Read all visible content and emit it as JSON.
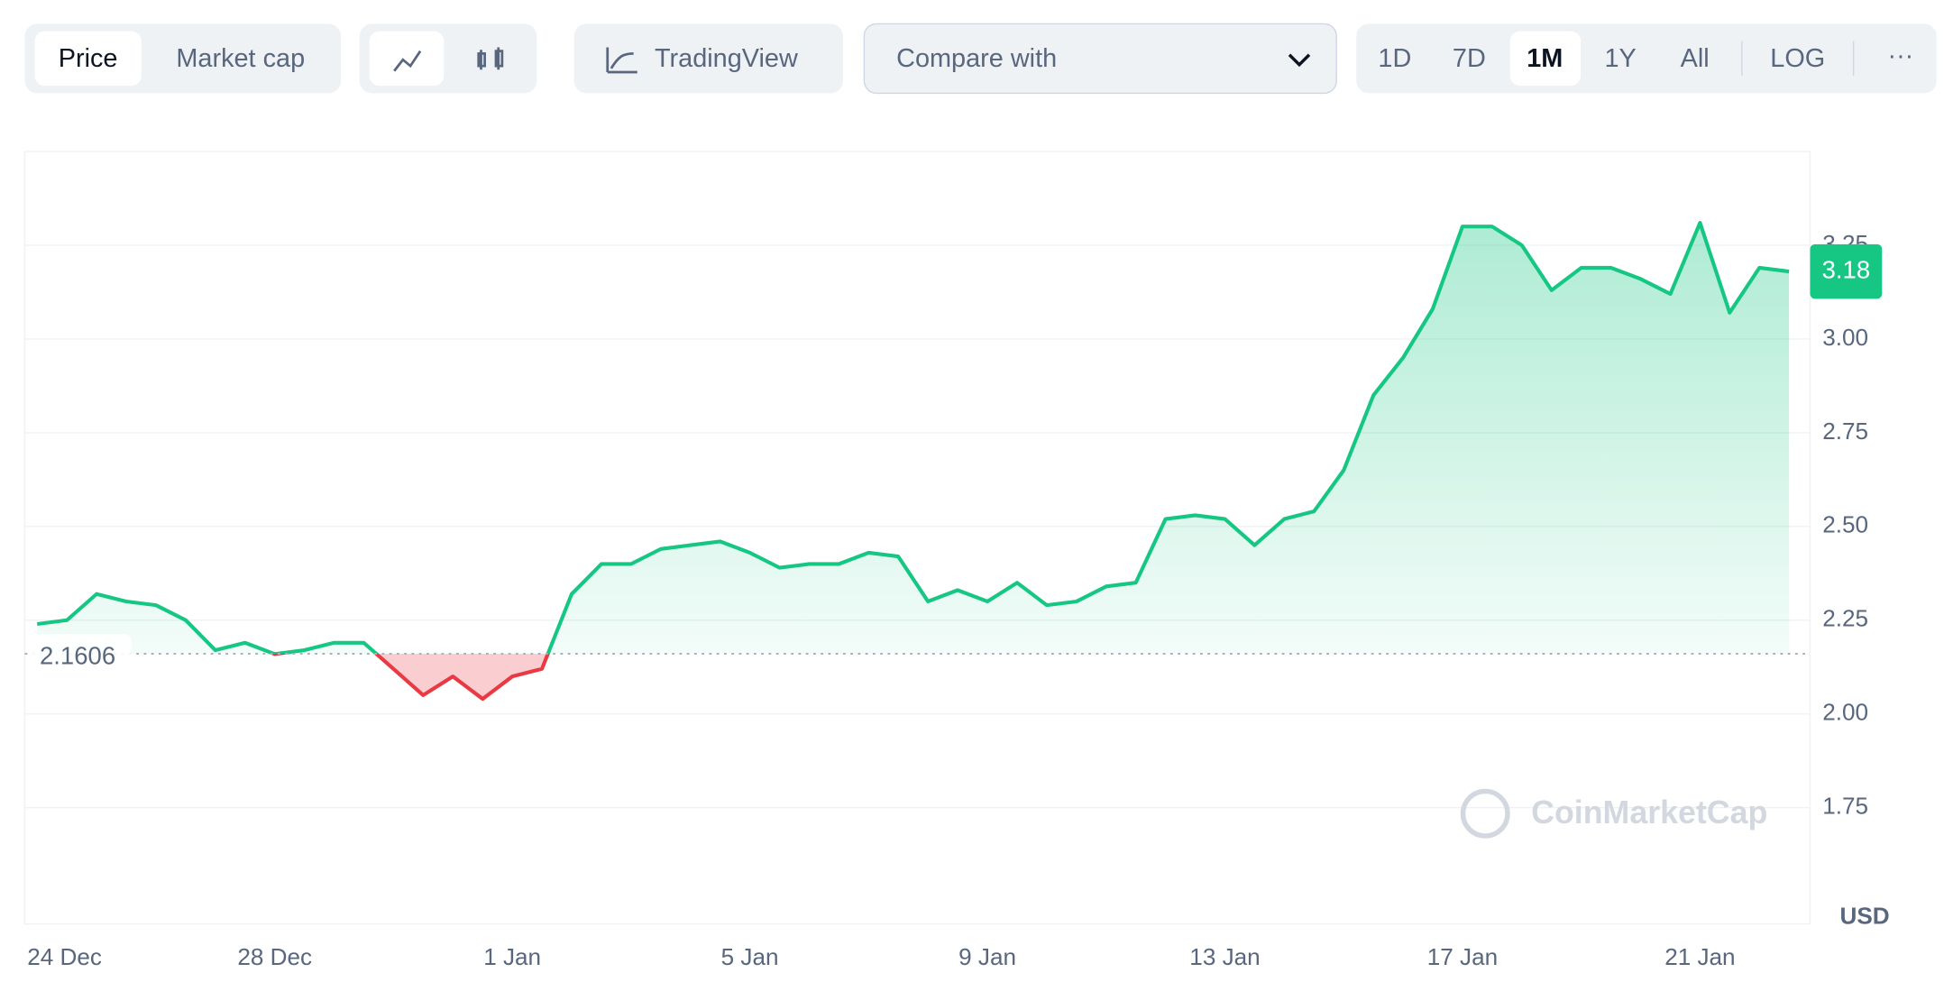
{
  "toolbar": {
    "tabs": [
      "Price",
      "Market cap"
    ],
    "tradingview": "TradingView",
    "compare": "Compare with",
    "ranges": [
      "1D",
      "7D",
      "1M",
      "1Y",
      "All",
      "LOG"
    ],
    "more": "···"
  },
  "chart_data": {
    "type": "line",
    "categories": [
      "24 Dec",
      null,
      null,
      null,
      null,
      null,
      null,
      null,
      "28 Dec",
      null,
      null,
      null,
      null,
      null,
      null,
      null,
      "1 Jan",
      null,
      null,
      null,
      null,
      null,
      null,
      null,
      "5 Jan",
      null,
      null,
      null,
      null,
      null,
      null,
      null,
      "9 Jan",
      null,
      null,
      null,
      null,
      null,
      null,
      null,
      "13 Jan",
      null,
      null,
      null,
      null,
      null,
      null,
      null,
      "17 Jan",
      null,
      null,
      null,
      null,
      null,
      null,
      null,
      "21 Jan",
      null,
      null,
      null
    ],
    "series": [
      {
        "color": "#16c784",
        "values": [
          2.24,
          2.25,
          2.32,
          2.3,
          2.29,
          2.25,
          2.17,
          2.19,
          2.16,
          2.17,
          2.19,
          2.19,
          2.12,
          2.05,
          2.1,
          2.04,
          2.1,
          2.12,
          2.32,
          2.4,
          2.4,
          2.44,
          2.45,
          2.46,
          2.43,
          2.39,
          2.4,
          2.4,
          2.43,
          2.42,
          2.3,
          2.33,
          2.3,
          2.35,
          2.29,
          2.3,
          2.34,
          2.35,
          2.52,
          2.53,
          2.52,
          2.45,
          2.52,
          2.54,
          2.65,
          2.85,
          2.95,
          3.08,
          3.3,
          3.3,
          3.25,
          3.13,
          3.19,
          3.19,
          3.16,
          3.12,
          3.31,
          3.07,
          3.19,
          3.18
        ]
      }
    ],
    "down_color": "#ea3943",
    "baseline": 2.1606,
    "ylim": [
      1.44,
      3.5
    ],
    "yticks": [
      1.75,
      {
        "value": 2,
        "label": "2.00"
      },
      2.25,
      {
        "value": 2.5,
        "label": "2.50"
      },
      2.75,
      {
        "value": 3,
        "label": "3.00"
      },
      3.25
    ],
    "y_unit": "USD",
    "watermark": "CoinMarketCap",
    "grid": true
  }
}
